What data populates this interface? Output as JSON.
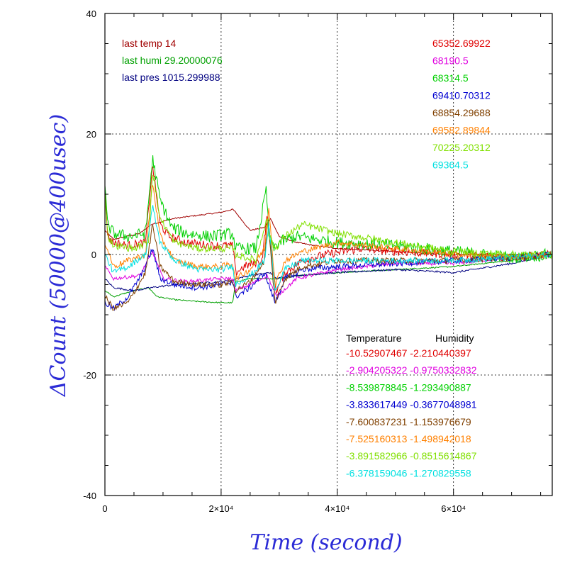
{
  "chart_data": {
    "type": "line",
    "title": "",
    "xlabel": "Time (second)",
    "ylabel": "ΔCount (50000@400usec)",
    "xlim": [
      0,
      77000
    ],
    "ylim": [
      -40,
      40
    ],
    "x_ticks": [
      {
        "value": 0,
        "label": "0"
      },
      {
        "value": 20000,
        "label": "2×10⁴"
      },
      {
        "value": 40000,
        "label": "4×10⁴"
      },
      {
        "value": 60000,
        "label": "6×10⁴"
      }
    ],
    "y_ticks": [
      {
        "value": 40,
        "label": "40"
      },
      {
        "value": 20,
        "label": "20"
      },
      {
        "value": 0,
        "label": "0"
      },
      {
        "value": -20,
        "label": "-20"
      },
      {
        "value": -40,
        "label": "-40"
      }
    ],
    "grid": true,
    "info": [
      {
        "text": "last temp 14",
        "color": "#a00000"
      },
      {
        "text": "last humi 29.20000076",
        "color": "#00a000"
      },
      {
        "text": "last pres 1015.299988",
        "color": "#000080"
      }
    ],
    "channel_values": [
      {
        "text": "65352.69922",
        "color": "#e00000"
      },
      {
        "text": "68190.5",
        "color": "#e000e0"
      },
      {
        "text": "68314.5",
        "color": "#00d000"
      },
      {
        "text": "69410.70312",
        "color": "#0000d0"
      },
      {
        "text": "68854.29688",
        "color": "#804000"
      },
      {
        "text": "69582.89844",
        "color": "#ff8000"
      },
      {
        "text": "70225.20312",
        "color": "#80e000"
      },
      {
        "text": "69364.5",
        "color": "#00e0e0"
      }
    ],
    "coeff_header": {
      "temperature": "Temperature",
      "humidity": "Humidity"
    },
    "coefficients": [
      {
        "temperature": "-10.52907467",
        "humidity": "-2.210440397",
        "color": "#e00000"
      },
      {
        "temperature": "-2.904205322",
        "humidity": "-0.9750332832",
        "color": "#e000e0"
      },
      {
        "temperature": "-8.539878845",
        "humidity": "-1.293490887",
        "color": "#00d000"
      },
      {
        "temperature": "-3.833617449",
        "humidity": "-0.3677048981",
        "color": "#0000d0"
      },
      {
        "temperature": "-7.600837231",
        "humidity": "-1.153976679",
        "color": "#804000"
      },
      {
        "temperature": "-7.525160313",
        "humidity": "-1.498942018",
        "color": "#ff8000"
      },
      {
        "temperature": "-3.891582966",
        "humidity": "-0.8515614867",
        "color": "#80e000"
      },
      {
        "temperature": "-6.378159046",
        "humidity": "-1.270829558",
        "color": "#00e0e0"
      }
    ],
    "series": [
      {
        "color": "#a00000",
        "noise": 0.1,
        "x": [
          0,
          1500,
          6000,
          8000,
          12000,
          16000,
          20000,
          22000,
          22500,
          25000,
          27500,
          28500,
          30000,
          33000,
          36000,
          40000,
          50000,
          60000,
          70000,
          77000
        ],
        "y": [
          4,
          2.5,
          3.5,
          5,
          6,
          6.5,
          7,
          7.5,
          7,
          4,
          4.5,
          6,
          3,
          2,
          1.5,
          1,
          0.5,
          0,
          0,
          0
        ]
      },
      {
        "color": "#00a000",
        "noise": 0.1,
        "x": [
          0,
          1500,
          5000,
          7500,
          9000,
          12000,
          16000,
          20000,
          22000,
          22500,
          25000,
          28000,
          29500,
          33000,
          40000,
          50000,
          60000,
          70000,
          77000
        ],
        "y": [
          -6,
          -7,
          -6,
          -5.5,
          -7,
          -7.5,
          -7.8,
          -8,
          -8,
          -4.5,
          -4,
          -4,
          -4,
          -3.5,
          -3,
          -2.5,
          -2,
          -1,
          0
        ]
      },
      {
        "color": "#000080",
        "noise": 0.15,
        "x": [
          0,
          1500,
          5000,
          8000,
          12000,
          16000,
          20000,
          22000,
          22500,
          25000,
          28500,
          29500,
          33000,
          40000,
          50000,
          60000,
          70000,
          77000
        ],
        "y": [
          -4,
          -5.5,
          -6,
          -5.5,
          -5,
          -4.8,
          -4.5,
          -4.3,
          -4,
          -3.5,
          -3,
          -4,
          -3.5,
          -3,
          -2.5,
          -3,
          -1.5,
          0
        ]
      },
      {
        "color": "#e00000",
        "noise": 0.7,
        "x": [
          0,
          500,
          1500,
          4000,
          7000,
          8200,
          9500,
          11000,
          14000,
          18000,
          22000,
          22500,
          24000,
          27000,
          28000,
          28700,
          29500,
          31000,
          34000,
          38000,
          44000,
          50000,
          60000,
          70000,
          77000
        ],
        "y": [
          11,
          3,
          2,
          1.5,
          2,
          15,
          5,
          3,
          2,
          1.5,
          1.5,
          -3,
          -2,
          -1,
          7,
          -1,
          -6,
          -3,
          -1,
          0,
          1,
          0.5,
          0,
          -0.5,
          0
        ]
      },
      {
        "color": "#e000e0",
        "noise": 0.3,
        "x": [
          0,
          1500,
          6000,
          8200,
          10000,
          14000,
          20000,
          22000,
          22500,
          25000,
          28000,
          29500,
          33000,
          40000,
          50000,
          60000,
          70000,
          77000
        ],
        "y": [
          -2,
          -4,
          -3.5,
          0.5,
          -4,
          -4.5,
          -4,
          -4,
          -6,
          -5,
          -3.5,
          -7,
          -4,
          -2.5,
          -1.5,
          -1.5,
          -0.5,
          0
        ]
      },
      {
        "color": "#00d000",
        "noise": 1.0,
        "x": [
          0,
          400,
          1500,
          4000,
          7000,
          8200,
          9500,
          11500,
          14000,
          18000,
          22000,
          22500,
          26000,
          27800,
          28200,
          29000,
          30000,
          33000,
          40000,
          50000,
          60000,
          70000,
          77000
        ],
        "y": [
          12,
          5,
          3.5,
          3,
          3.5,
          16,
          9,
          4.5,
          3.5,
          3,
          3.5,
          1,
          1,
          11,
          3,
          1,
          2,
          3,
          2,
          1.5,
          0.5,
          -0.5,
          0
        ]
      },
      {
        "color": "#0000d0",
        "noise": 0.5,
        "x": [
          0,
          1500,
          4000,
          6500,
          8200,
          9500,
          12000,
          16000,
          20000,
          22000,
          22500,
          25000,
          27500,
          28200,
          29300,
          31000,
          34000,
          40000,
          50000,
          60000,
          70000,
          77000
        ],
        "y": [
          -8,
          -9,
          -7,
          -3,
          1,
          -4,
          -5,
          -5.5,
          -5,
          -4.5,
          -7,
          -5.5,
          -3,
          -5,
          -8,
          -4,
          -2.5,
          -2,
          -1.5,
          -1,
          -0.5,
          0
        ]
      },
      {
        "color": "#804000",
        "noise": 0.5,
        "x": [
          0,
          1500,
          4000,
          7000,
          8200,
          9500,
          12000,
          16000,
          20000,
          22000,
          22500,
          25000,
          27500,
          28000,
          29300,
          31000,
          34000,
          40000,
          50000,
          60000,
          70000,
          77000
        ],
        "y": [
          -7,
          -9,
          -8,
          -3,
          5,
          -2,
          -4.5,
          -5,
          -5,
          -4.5,
          -6,
          -4.5,
          -1,
          6,
          -8,
          -4,
          -2,
          -1,
          -1,
          -1,
          -0.5,
          0
        ]
      },
      {
        "color": "#ff8000",
        "noise": 0.5,
        "x": [
          0,
          1500,
          4000,
          7000,
          8200,
          9500,
          12000,
          16000,
          20000,
          22000,
          22500,
          25000,
          27500,
          28200,
          29300,
          31000,
          34000,
          40000,
          50000,
          60000,
          70000,
          77000
        ],
        "y": [
          2,
          -2,
          -1,
          0,
          12,
          3,
          -1,
          -2,
          -2,
          -1.5,
          -4,
          -2.5,
          1,
          8,
          -5,
          -1,
          0.5,
          2,
          1,
          0,
          -0.5,
          0
        ]
      },
      {
        "color": "#80e000",
        "noise": 0.6,
        "x": [
          0,
          500,
          1500,
          5000,
          7500,
          8200,
          9500,
          12000,
          16000,
          20000,
          22000,
          22500,
          26000,
          27800,
          28300,
          29300,
          31000,
          34000,
          40000,
          50000,
          60000,
          70000,
          77000
        ],
        "y": [
          10,
          3,
          1.5,
          1,
          2,
          14,
          6,
          2,
          1,
          1,
          1,
          0,
          -1,
          6,
          3,
          1,
          3,
          5,
          3.5,
          2,
          0.5,
          0,
          0
        ]
      },
      {
        "color": "#00e0e0",
        "noise": 0.5,
        "x": [
          0,
          1500,
          4000,
          7000,
          8200,
          9500,
          12000,
          16000,
          20000,
          22000,
          22500,
          25000,
          27500,
          28200,
          29300,
          31000,
          34000,
          40000,
          50000,
          60000,
          70000,
          77000
        ],
        "y": [
          0,
          -3,
          -2,
          0,
          8,
          2,
          -1,
          -2.5,
          -2.5,
          -2,
          -5,
          -3.5,
          -1,
          5,
          -6,
          -2.5,
          -1,
          -1,
          -1,
          -1,
          -0.5,
          0
        ]
      }
    ]
  }
}
